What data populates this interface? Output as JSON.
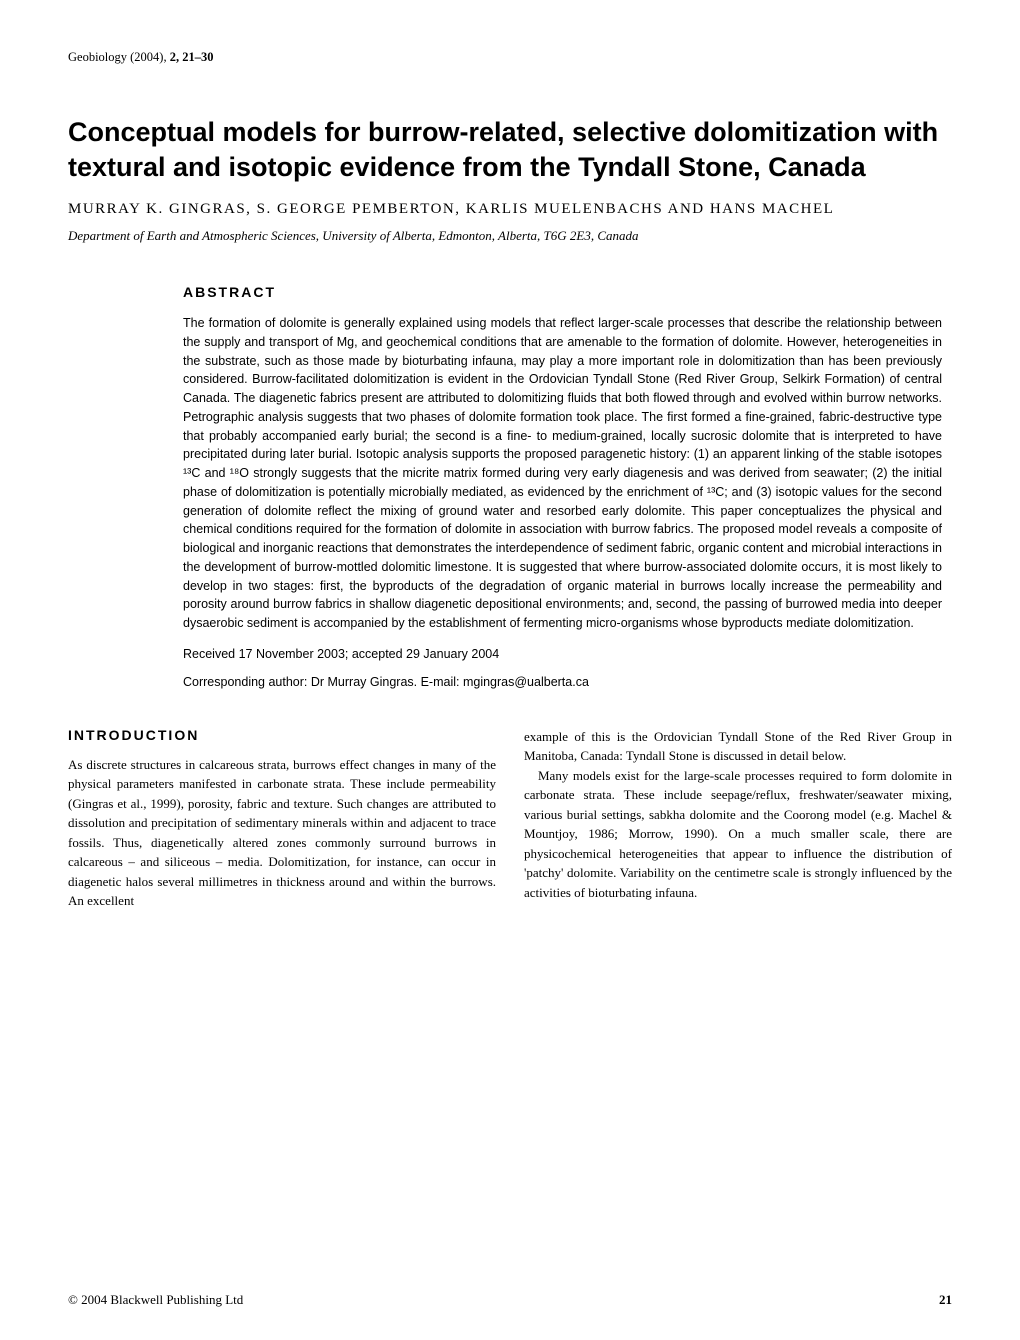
{
  "header": {
    "journal": "Geobiology (2004), ",
    "volume_pages": "2, 21–30"
  },
  "title": "Conceptual models for burrow-related, selective dolomitization with textural and isotopic evidence from the Tyndall Stone, Canada",
  "authors": "MURRAY K. GINGRAS, S. GEORGE PEMBERTON, KARLIS MUELENBACHS AND HANS MACHEL",
  "affiliation": "Department of Earth and Atmospheric Sciences, University of Alberta, Edmonton, Alberta, T6G 2E3, Canada",
  "abstract_heading": "ABSTRACT",
  "abstract_text": "The formation of dolomite is generally explained using models that reflect larger-scale processes that describe the relationship between the supply and transport of Mg, and geochemical conditions that are amenable to the formation of dolomite. However, heterogeneities in the substrate, such as those made by bioturbating infauna, may play a more important role in dolomitization than has been previously considered. Burrow-facilitated dolomitization is evident in the Ordovician Tyndall Stone (Red River Group, Selkirk Formation) of central Canada. The diagenetic fabrics present are attributed to dolomitizing fluids that both flowed through and evolved within burrow networks. Petrographic analysis suggests that two phases of dolomite formation took place. The first formed a fine-grained, fabric-destructive type that probably accompanied early burial; the second is a fine- to medium-grained, locally sucrosic dolomite that is interpreted to have precipitated during later burial. Isotopic analysis supports the proposed paragenetic history: (1) an apparent linking of the stable isotopes ¹³C and ¹⁸O strongly suggests that the micrite matrix formed during very early diagenesis and was derived from seawater; (2) the initial phase of dolomitization is potentially microbially mediated, as evidenced by the enrichment of ¹³C; and (3) isotopic values for the second generation of dolomite reflect the mixing of ground water and resorbed early dolomite. This paper conceptualizes the physical and chemical conditions required for the formation of dolomite in association with burrow fabrics. The proposed model reveals a composite of biological and inorganic reactions that demonstrates the interdependence of sediment fabric, organic content and microbial interactions in the development of burrow-mottled dolomitic limestone. It is suggested that where burrow-associated dolomite occurs, it is most likely to develop in two stages: first, the byproducts of the degradation of organic material in burrows locally increase the permeability and porosity around burrow fabrics in shallow diagenetic depositional environments; and, second, the passing of burrowed media into deeper dysaerobic sediment is accompanied by the establishment of fermenting micro-organisms whose byproducts mediate dolomitization.",
  "received": "Received 17 November 2003; accepted 29 January 2004",
  "corresponding": "Corresponding author: Dr Murray Gingras. E-mail: mgingras@ualberta.ca",
  "introduction_heading": "INTRODUCTION",
  "intro_col1_p1": "As discrete structures in calcareous strata, burrows effect changes in many of the physical parameters manifested in carbonate strata. These include permeability (Gingras et al., 1999), porosity, fabric and texture. Such changes are attributed to dissolution and precipitation of sedimentary minerals within and adjacent to trace fossils. Thus, diagenetically altered zones commonly surround burrows in calcareous – and siliceous – media. Dolomitization, for instance, can occur in diagenetic halos several millimetres in thickness around and within the burrows. An excellent",
  "intro_col2_p1": "example of this is the Ordovician Tyndall Stone of the Red River Group in Manitoba, Canada: Tyndall Stone is discussed in detail below.",
  "intro_col2_p2": "Many models exist for the large-scale processes required to form dolomite in carbonate strata. These include seepage/reflux, freshwater/seawater mixing, various burial settings, sabkha dolomite and the Coorong model (e.g. Machel & Mountjoy, 1986; Morrow, 1990). On a much smaller scale, there are physicochemical heterogeneities that appear to influence the distribution of 'patchy' dolomite. Variability on the centimetre scale is strongly influenced by the activities of bioturbating infauna.",
  "footer_copyright": "© 2004 Blackwell Publishing Ltd",
  "page_number": "21"
}
